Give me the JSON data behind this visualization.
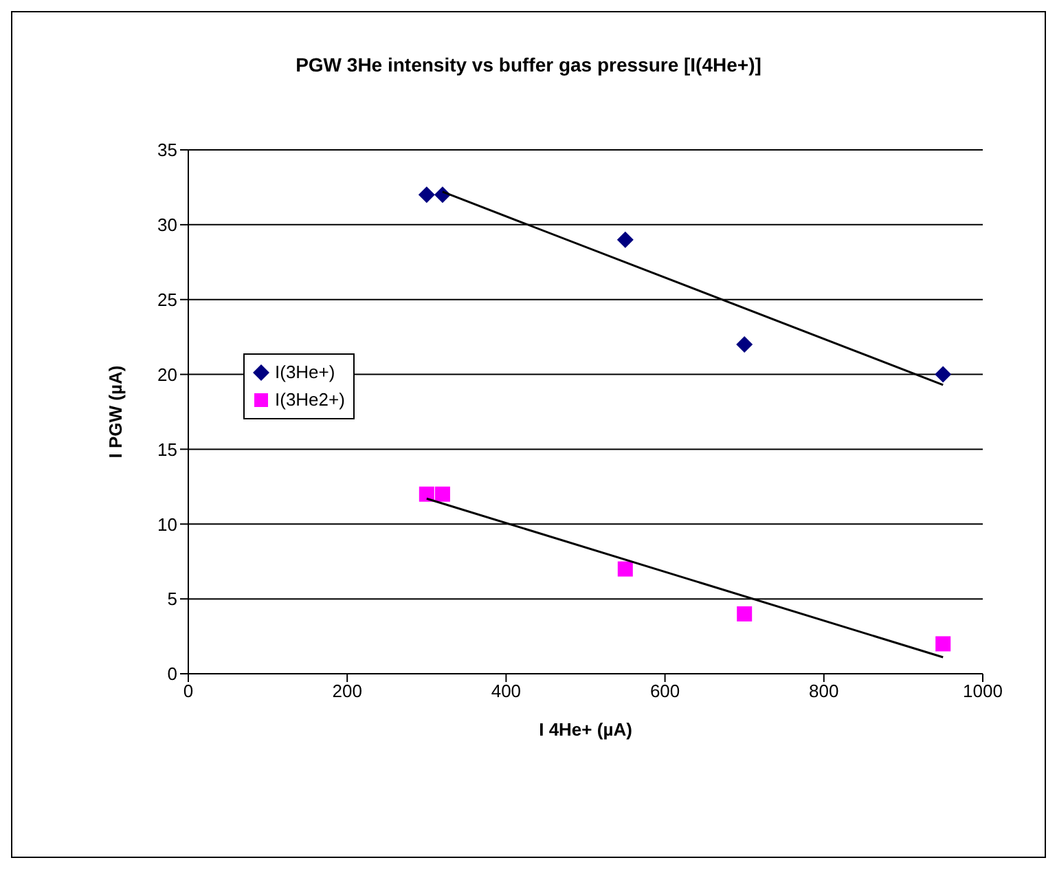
{
  "chart_data": {
    "type": "scatter",
    "title": "PGW 3He intensity vs buffer gas pressure [I(4He+)]",
    "xlabel": "I 4He+ (µA)",
    "ylabel": "I PGW (µA)",
    "xlim": [
      0,
      1000
    ],
    "xticks": [
      0,
      200,
      400,
      600,
      800,
      1000
    ],
    "ylim": [
      0,
      35
    ],
    "yticks": [
      0,
      5,
      10,
      15,
      20,
      25,
      30,
      35
    ],
    "grid": "y",
    "legend": "left",
    "series": [
      {
        "name": "I(3He+)",
        "type": "scatter",
        "marker": "diamond",
        "color": "#000080",
        "x": [
          300,
          320,
          550,
          700,
          950
        ],
        "values": [
          32,
          32,
          29,
          22,
          20
        ]
      },
      {
        "name": "I(3He2+)",
        "type": "scatter",
        "marker": "square",
        "color": "#ff00ff",
        "x": [
          300,
          320,
          550,
          700,
          950
        ],
        "values": [
          12,
          12,
          7,
          4,
          2
        ]
      },
      {
        "type": "line",
        "marker": "none",
        "color": "#000000",
        "x": [
          320,
          950
        ],
        "values": [
          32.2,
          19.3
        ]
      },
      {
        "type": "line",
        "marker": "none",
        "color": "#000000",
        "x": [
          300,
          950
        ],
        "values": [
          11.7,
          1.1
        ]
      }
    ]
  }
}
